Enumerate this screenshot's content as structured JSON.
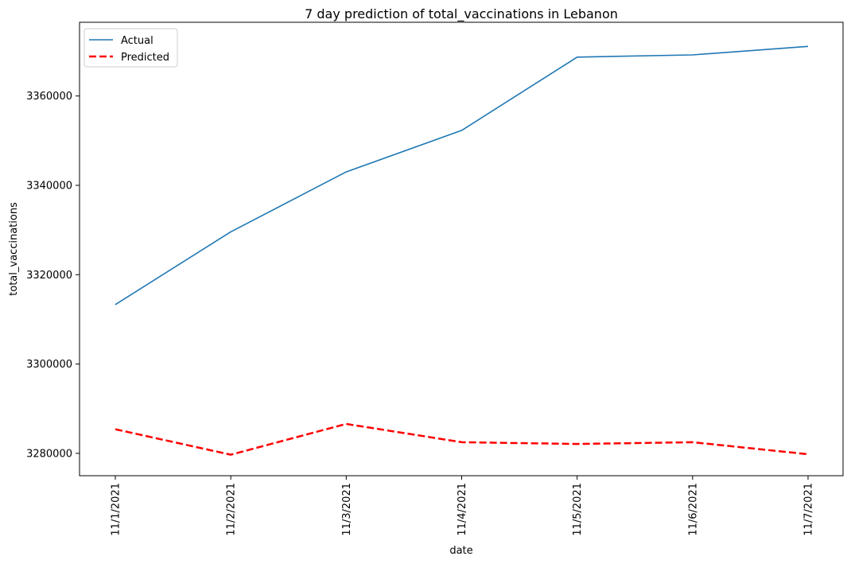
{
  "chart_data": {
    "type": "line",
    "title": "7 day prediction of total_vaccinations in Lebanon",
    "xlabel": "date",
    "ylabel": "total_vaccinations",
    "categories": [
      "11/1/2021",
      "11/2/2021",
      "11/3/2021",
      "11/4/2021",
      "11/5/2021",
      "11/6/2021",
      "11/7/2021"
    ],
    "y_ticks": [
      3280000,
      3300000,
      3320000,
      3340000,
      3360000
    ],
    "ylim": [
      3275000,
      3376500
    ],
    "grid": false,
    "legend_position": "top-left",
    "series": [
      {
        "name": "Actual",
        "color": "#1f77b4",
        "style": "solid",
        "values": [
          3313300,
          3329600,
          3343000,
          3352300,
          3368700,
          3369200,
          3371100
        ]
      },
      {
        "name": "Predicted",
        "color": "#ff0000",
        "style": "dashed",
        "values": [
          3285400,
          3279700,
          3286600,
          3282500,
          3282100,
          3282500,
          3279800
        ]
      }
    ]
  }
}
